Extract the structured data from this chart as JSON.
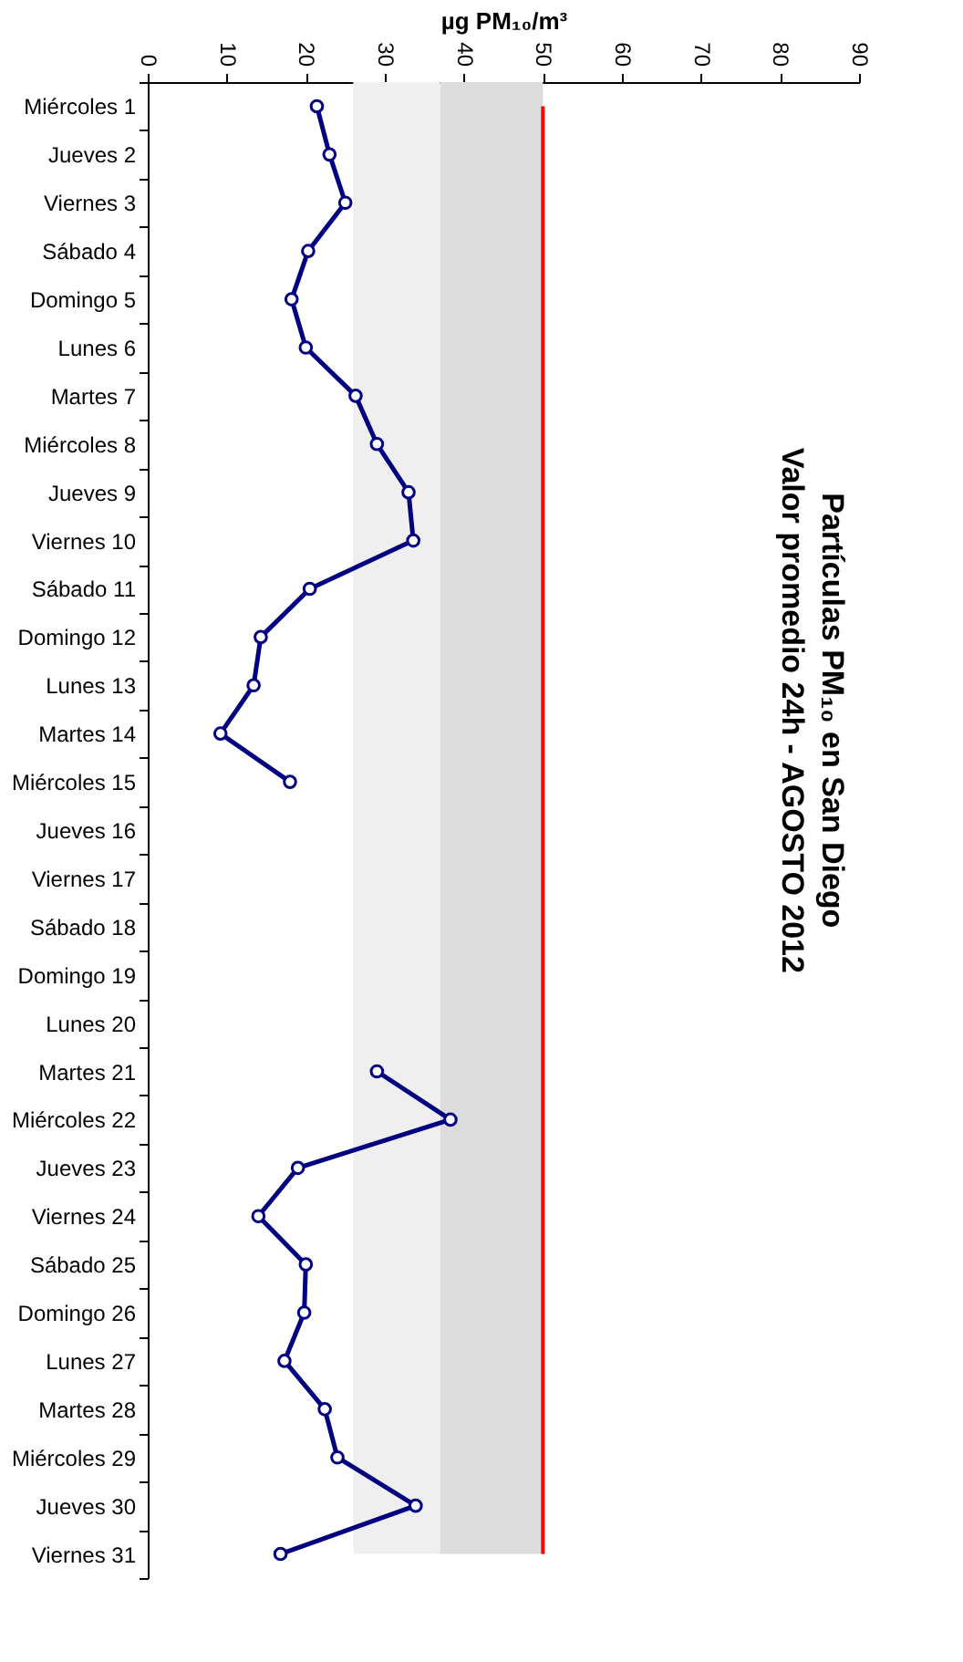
{
  "chart_data": {
    "type": "line",
    "orientation": "horizontal",
    "title": [
      "Partículas PM₁₀ en San Diego",
      "Valor promedio 24h - AGOSTO 2012"
    ],
    "xlabel": "µg PM₁₀/m³",
    "categories": [
      "Miércoles 1",
      "Jueves 2",
      "Viernes 3",
      "Sábado 4",
      "Domingo 5",
      "Lunes 6",
      "Martes 7",
      "Miércoles 8",
      "Jueves 9",
      "Viernes 10",
      "Sábado 11",
      "Domingo 12",
      "Lunes 13",
      "Martes 14",
      "Miércoles 15",
      "Jueves 16",
      "Viernes 17",
      "Sábado 18",
      "Domingo 19",
      "Lunes 20",
      "Martes 21",
      "Miércoles 22",
      "Jueves 23",
      "Viernes 24",
      "Sábado 25",
      "Domingo 26",
      "Lunes 27",
      "Martes 28",
      "Miércoles 29",
      "Jueves 30",
      "Viernes 31"
    ],
    "series": [
      {
        "color": "#000080",
        "values": [
          21.4,
          23,
          25,
          20.3,
          18.2,
          20,
          26.3,
          29,
          33,
          33.6,
          20.5,
          14.3,
          13.4,
          9.2,
          18,
          null,
          null,
          null,
          null,
          null,
          29,
          38.3,
          19,
          14,
          20,
          19.8,
          17.3,
          22.4,
          24,
          33.9,
          16.8
        ]
      }
    ],
    "xlim": [
      0,
      90
    ],
    "xticks": [
      0,
      10,
      20,
      30,
      40,
      50,
      60,
      70,
      80,
      90
    ],
    "bands": [
      {
        "axis": "x",
        "from": 26,
        "to": 37,
        "color": "#efefef"
      },
      {
        "axis": "x",
        "from": 37,
        "to": 50,
        "color": "#dcdcdc"
      }
    ],
    "ref_lines": [
      {
        "axis": "x",
        "value": 50,
        "color": "#ff0000"
      }
    ],
    "marker": "circle",
    "line_style": "solid",
    "grid": false
  }
}
